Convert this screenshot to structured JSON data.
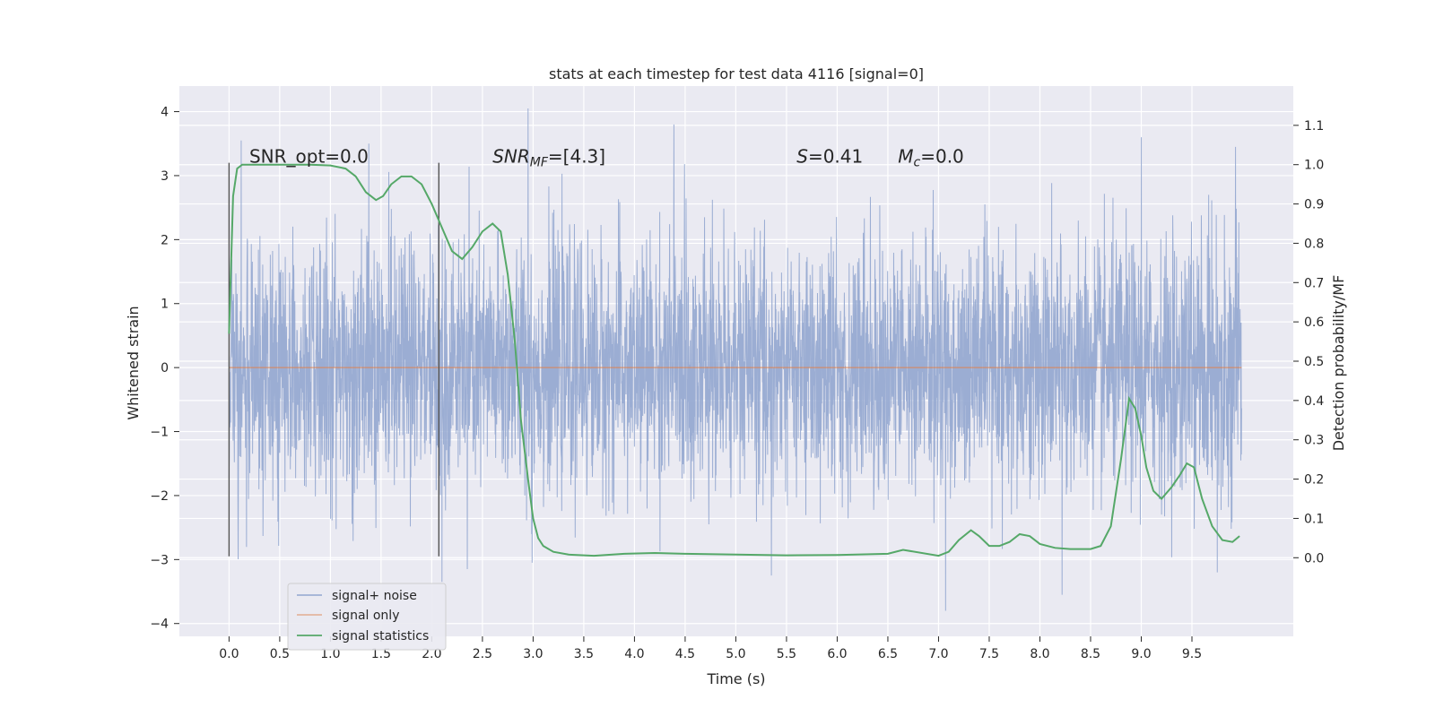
{
  "chart_data": {
    "type": "line",
    "title": "stats at each timestep for test data 4116 [signal=0]",
    "xlabel": "Time (s)",
    "ylabel": "Whitened strain",
    "ylabel_right": "Detection probability/MF",
    "xlim": [
      -0.49,
      10.5
    ],
    "ylim": [
      -4.2,
      4.4
    ],
    "ylim_right": [
      -0.2,
      1.2
    ],
    "x_ticks": [
      "0.0",
      "0.5",
      "1.0",
      "1.5",
      "2.0",
      "2.5",
      "3.0",
      "3.5",
      "4.0",
      "4.5",
      "5.0",
      "5.5",
      "6.0",
      "6.5",
      "7.0",
      "7.5",
      "8.0",
      "8.5",
      "9.0",
      "9.5"
    ],
    "y_ticks": [
      "−4",
      "−3",
      "−2",
      "−1",
      "0",
      "1",
      "2",
      "3",
      "4"
    ],
    "y_ticks_right": [
      "0.0",
      "0.1",
      "0.2",
      "0.3",
      "0.4",
      "0.5",
      "0.6",
      "0.7",
      "0.8",
      "0.9",
      "1.0",
      "1.1"
    ],
    "grid": true,
    "legend_position": "lower-left",
    "vertical_lines": [
      {
        "x": 0.0,
        "y_from": -2.95,
        "y_to": 3.2
      },
      {
        "x": 2.07,
        "y_from": -2.95,
        "y_to": 3.2
      }
    ],
    "annotations": [
      {
        "text": "SNR_opt=0.0",
        "x": 0.2,
        "y": 3.3
      },
      {
        "text_main": "SNR",
        "text_sub": "MF",
        "text_rest": "=[4.3]",
        "x": 2.6,
        "y": 3.3
      },
      {
        "text_main": "S",
        "text_rest": "=0.41",
        "x": 5.6,
        "y": 3.3
      },
      {
        "text_main": "M",
        "text_sub": "c",
        "text_rest": "=0.0",
        "x": 6.6,
        "y": 3.3
      }
    ],
    "series": [
      {
        "name": "signal+ noise",
        "color": "#92a6cf",
        "axis": "left",
        "x_range": [
          0.0,
          9.99
        ],
        "note": "dense noise trace",
        "approx_range": [
          -3.7,
          4.05
        ],
        "spikes": [
          [
            0.12,
            3.55
          ],
          [
            1.38,
            3.5
          ],
          [
            2.1,
            -3.35
          ],
          [
            2.35,
            -3.15
          ],
          [
            2.95,
            4.05
          ],
          [
            2.99,
            -3.05
          ],
          [
            4.39,
            3.8
          ],
          [
            5.35,
            -3.25
          ],
          [
            7.07,
            -3.8
          ],
          [
            8.22,
            -3.55
          ],
          [
            9.0,
            3.6
          ],
          [
            9.75,
            -3.2
          ],
          [
            9.93,
            3.45
          ]
        ]
      },
      {
        "name": "signal only",
        "color": "#dd8452",
        "axis": "left",
        "x": [
          0.0,
          9.99
        ],
        "y": [
          0.0,
          0.0
        ]
      },
      {
        "name": "signal statistics",
        "color": "#55a868",
        "axis": "right",
        "x": [
          0.0,
          0.04,
          0.08,
          0.13,
          0.2,
          0.3,
          0.5,
          0.8,
          1.0,
          1.15,
          1.25,
          1.35,
          1.45,
          1.52,
          1.6,
          1.7,
          1.8,
          1.9,
          2.0,
          2.1,
          2.2,
          2.3,
          2.4,
          2.5,
          2.6,
          2.68,
          2.75,
          2.82,
          2.88,
          2.95,
          3.0,
          3.05,
          3.1,
          3.2,
          3.35,
          3.6,
          3.9,
          4.2,
          4.5,
          5.0,
          5.5,
          6.0,
          6.5,
          6.65,
          7.0,
          7.1,
          7.2,
          7.32,
          7.4,
          7.5,
          7.6,
          7.7,
          7.8,
          7.9,
          8.0,
          8.15,
          8.3,
          8.5,
          8.6,
          8.7,
          8.8,
          8.88,
          8.94,
          9.0,
          9.05,
          9.12,
          9.2,
          9.3,
          9.38,
          9.45,
          9.52,
          9.6,
          9.7,
          9.8,
          9.9,
          9.97
        ],
        "y": [
          0.57,
          0.92,
          0.99,
          1.0,
          1.0,
          1.0,
          1.0,
          1.0,
          0.998,
          0.99,
          0.97,
          0.93,
          0.91,
          0.92,
          0.95,
          0.97,
          0.97,
          0.95,
          0.9,
          0.84,
          0.78,
          0.76,
          0.79,
          0.83,
          0.85,
          0.83,
          0.72,
          0.55,
          0.35,
          0.2,
          0.1,
          0.05,
          0.03,
          0.015,
          0.008,
          0.005,
          0.01,
          0.012,
          0.01,
          0.008,
          0.006,
          0.007,
          0.01,
          0.02,
          0.005,
          0.015,
          0.045,
          0.07,
          0.055,
          0.03,
          0.03,
          0.04,
          0.06,
          0.055,
          0.035,
          0.025,
          0.022,
          0.022,
          0.03,
          0.08,
          0.25,
          0.405,
          0.38,
          0.31,
          0.23,
          0.17,
          0.15,
          0.18,
          0.21,
          0.24,
          0.23,
          0.15,
          0.08,
          0.045,
          0.04,
          0.055
        ]
      }
    ]
  }
}
